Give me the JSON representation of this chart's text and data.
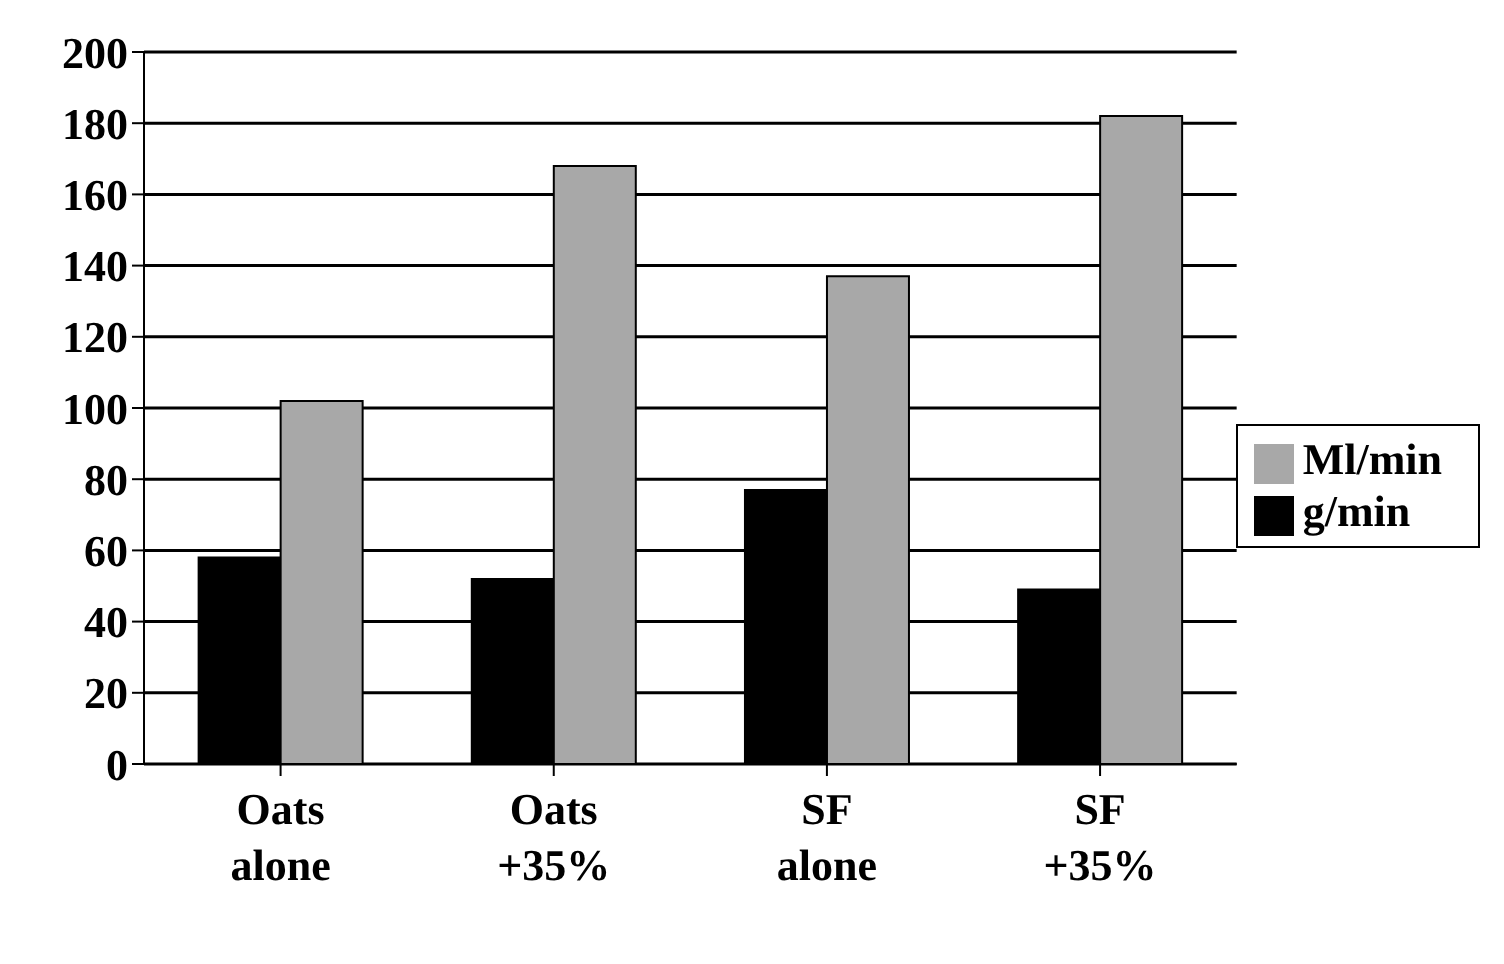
{
  "chart_data": {
    "type": "bar",
    "categories": [
      "Oats alone",
      "Oats +35%",
      "SF alone",
      "SF +35%"
    ],
    "series": [
      {
        "name": "g/min",
        "color": "#000000",
        "values": [
          58,
          52,
          77,
          49
        ]
      },
      {
        "name": "Ml/min",
        "color": "#a8a8a8",
        "values": [
          102,
          168,
          137,
          182
        ]
      }
    ],
    "ylim": [
      0,
      200
    ],
    "yticks": [
      0,
      20,
      40,
      60,
      80,
      100,
      120,
      140,
      160,
      180,
      200
    ],
    "grid": "y",
    "legend": "right"
  }
}
